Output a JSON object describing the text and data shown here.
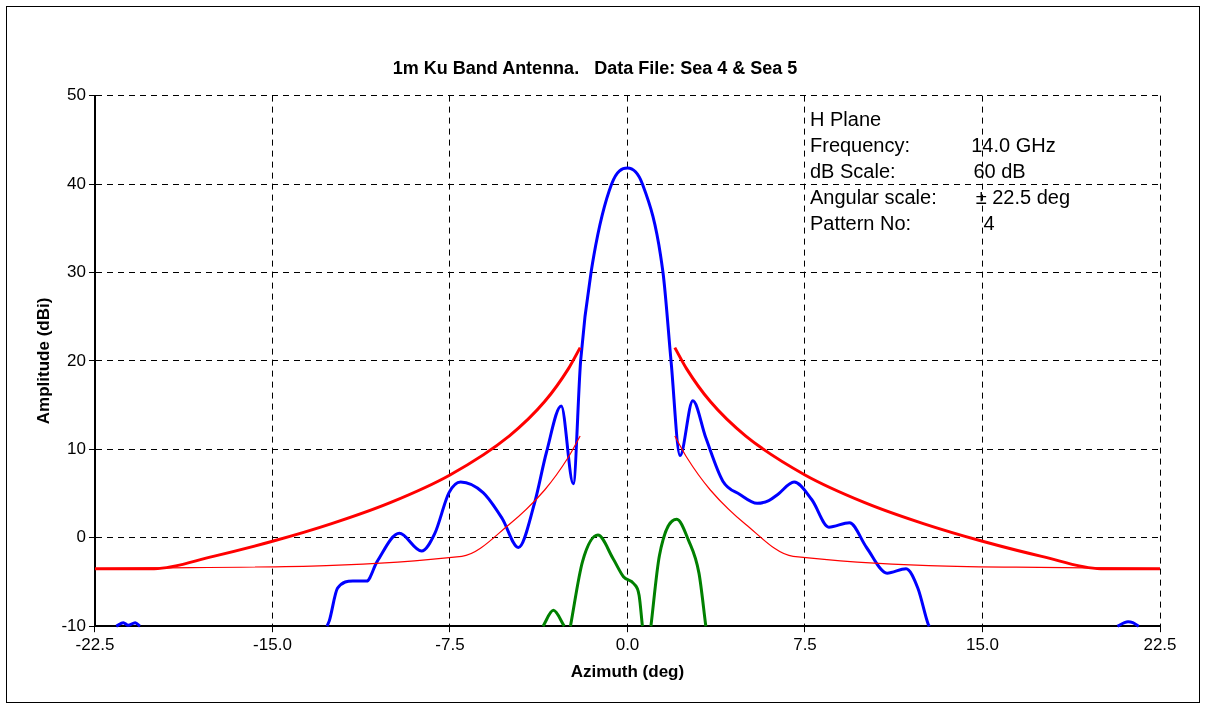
{
  "chart_data": {
    "type": "line",
    "title": "1m Ku Band Antenna.   Data File: Sea 4 & Sea 5",
    "xlabel": "Azimuth (deg)",
    "ylabel": "Amplitude (dBi)",
    "annotations": [
      "H Plane",
      "Frequency:           14.0 GHz",
      "dB Scale:              60 dB",
      "Angular scale:       ± 22.5 deg",
      "Pattern No:             4"
    ],
    "xlim": [
      -22.5,
      22.5
    ],
    "xticks": [
      {
        "value": -22.5,
        "label": "-22.5"
      },
      {
        "value": -15,
        "label": "-15.0"
      },
      {
        "value": -7.5,
        "label": "-7.5"
      },
      {
        "value": 0,
        "label": "0.0"
      },
      {
        "value": 7.5,
        "label": "7.5"
      },
      {
        "value": 15,
        "label": "15.0"
      },
      {
        "value": 22.5,
        "label": "22.5"
      }
    ],
    "ylim": [
      -10,
      50
    ],
    "yticks": [
      -10,
      0,
      10,
      20,
      30,
      40,
      50
    ],
    "grid": true,
    "legend": false,
    "marker": "none",
    "line_style": "solid",
    "series": [
      {
        "color": "#ff0000",
        "x": [
          -22.5,
          -20,
          -17.5,
          -15,
          -12.5,
          -10,
          -7.5,
          -5,
          -3.5,
          -2.5,
          -2,
          0,
          2,
          2.5,
          3.5,
          5,
          7.5,
          10,
          12.5,
          15,
          17.5,
          20,
          22.5
        ],
        "values": [
          -3.5,
          -3.5,
          -2.1,
          -0.4,
          1.6,
          4.0,
          7.1,
          11.5,
          15.4,
          19.1,
          21.5,
          null,
          21.5,
          19.1,
          15.4,
          11.5,
          7.1,
          4.0,
          1.6,
          -0.4,
          -2.1,
          -3.5,
          -3.5
        ]
      },
      {
        "color": "#ff0000",
        "x": [
          -22.5,
          -20,
          -7,
          -5,
          -3.5,
          -2.5,
          -2,
          0,
          2,
          2.5,
          3.5,
          5,
          7,
          20,
          22.5
        ],
        "values": [
          -3.5,
          -3.4,
          -2.1,
          1.5,
          5.4,
          9.1,
          11.5,
          null,
          11.5,
          9.1,
          5.4,
          1.5,
          -2.1,
          -3.4,
          -3.5
        ]
      },
      {
        "color": "#0000ff",
        "x": [
          -21.6,
          -21.3,
          -21.1,
          -20.8,
          -20.6,
          -16,
          -12.7,
          -12.6,
          -12.25,
          -11.6,
          -11.02,
          -10.58,
          -9.64,
          -8.7,
          -8.14,
          -7.54,
          -7.05,
          -6.1,
          -5.3,
          -4.61,
          -3.93,
          -3.42,
          -2.8,
          -2.29,
          -1.98,
          -1.54,
          -0.67,
          0,
          0.63,
          1.5,
          1.84,
          2.22,
          2.76,
          3.31,
          4.03,
          4.75,
          5.48,
          5.97,
          6.35,
          7.04,
          7.79,
          8.51,
          9.38,
          10.1,
          10.97,
          11.77,
          12.27,
          12.71,
          12.75,
          16,
          20.7,
          21.0,
          21.15,
          21.35,
          21.6
        ],
        "values": [
          -10,
          -9.6,
          -9.9,
          -9.6,
          -10,
          null,
          -10,
          -9.4,
          -5.7,
          -4.9,
          -4.9,
          -2.7,
          0.5,
          -1.5,
          0.5,
          5.1,
          6.3,
          5.1,
          2.2,
          -1.1,
          3.9,
          9.7,
          14.9,
          6.1,
          20,
          30,
          40,
          41.8,
          40,
          30,
          20,
          9.3,
          15.5,
          11.3,
          6.4,
          4.9,
          3.9,
          4.2,
          4.9,
          6.3,
          4.3,
          1.2,
          1.7,
          -1.1,
          -4.0,
          -3.5,
          -5.7,
          -9.8,
          -10,
          null,
          -10,
          -9.6,
          -9.5,
          -9.6,
          -10
        ]
      },
      {
        "color": "#008000",
        "x": [
          -3.57,
          -3.13,
          -2.67,
          -2.5,
          -2.41,
          -1.9,
          -1.25,
          -0.6,
          -0.17,
          0.27,
          0.49,
          0.63,
          0.8,
          0.99,
          1.35,
          2.08,
          2.58,
          3.02,
          3.31
        ],
        "values": [
          -10,
          -8.2,
          -10,
          null,
          -10,
          -2.7,
          0.3,
          -2.4,
          -4.4,
          -5.2,
          -6.5,
          -10,
          null,
          -10,
          -2.0,
          2.1,
          -0.3,
          -4.0,
          -10
        ]
      }
    ]
  }
}
